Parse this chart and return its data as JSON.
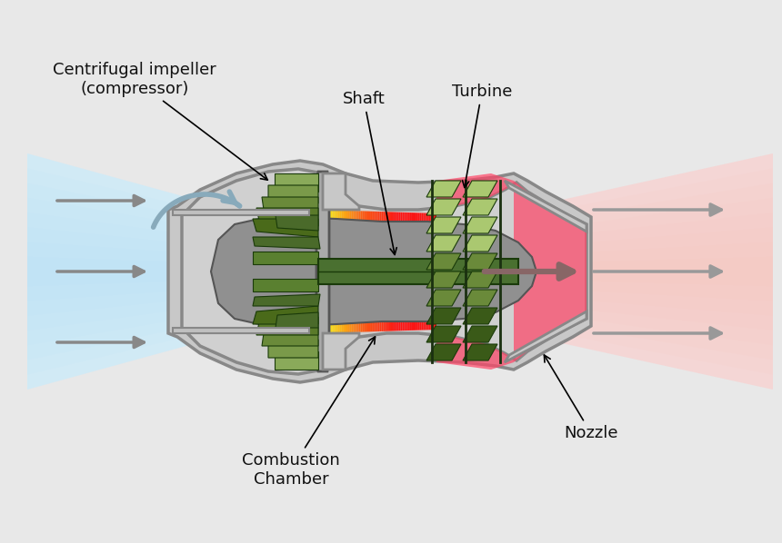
{
  "bg": "#e8e8e8",
  "labels": {
    "compressor": "Centrifugal impeller\n(compressor)",
    "shaft": "Shaft",
    "turbine": "Turbine",
    "combustion": "Combustion\nChamber",
    "nozzle": "Nozzle"
  },
  "colors": {
    "bg": "#e8e8e8",
    "outer_casing_fill": "#c8c8c8",
    "outer_casing_edge": "#888888",
    "inner_casing_fill": "#d0d0d0",
    "inner_casing_edge": "#888888",
    "gray_body": "#888888",
    "gray_body_edge": "#555555",
    "compressor_disk": "#aaaaaa",
    "compressor_blade_light": "#8aaa6a",
    "compressor_blade_mid": "#5a7a3a",
    "compressor_blade_dark": "#2a4a1a",
    "shaft_green": "#4a7030",
    "turbine_blade_light": "#aac880",
    "turbine_blade_dark": "#2a4a1a",
    "arrow_gray": "#888888",
    "text_color": "#111111",
    "intake_blue": "#aaeeff",
    "exhaust_pink": "#ffaaaa",
    "comb_yellow": "#ffff00",
    "comb_orange": "#ff8800",
    "comb_red": "#ff2200",
    "hot_red": "#ff4466",
    "nozzle_lip": "#c0c0c0"
  }
}
